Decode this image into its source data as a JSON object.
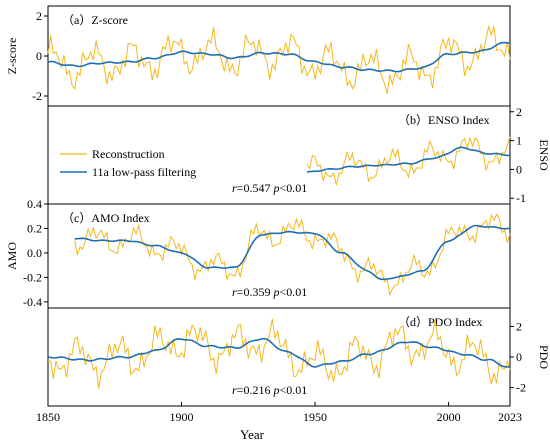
{
  "chart_data": {
    "type": "line",
    "xlabel": "Year",
    "x_ticks": [
      1850,
      1900,
      1950,
      2000,
      2023
    ],
    "xlim": [
      1850,
      2023
    ],
    "legend": {
      "placement": "inside panel b, left",
      "entries": [
        {
          "label": "Reconstruction",
          "color": "#f5b71c"
        },
        {
          "label": "11a low-pass filtering",
          "color": "#1f6fb5"
        }
      ]
    },
    "panels": [
      {
        "id": "a",
        "title": "（a）Z-score",
        "ylabel": "Z-score",
        "y_axis_side": "left",
        "ylim": [
          -2.5,
          2.5
        ],
        "y_ticks": [
          -2,
          0,
          2
        ],
        "y_tick_labels": [
          "-2",
          "0",
          "2"
        ],
        "stat_r": "",
        "stat_p": "",
        "x_start": 1850,
        "anchors_x": [
          1850,
          1860,
          1870,
          1880,
          1890,
          1900,
          1910,
          1920,
          1930,
          1940,
          1950,
          1960,
          1970,
          1980,
          1990,
          2000,
          2010,
          2023
        ],
        "filtered": [
          -0.3,
          -0.5,
          -0.35,
          -0.3,
          -0.1,
          0.2,
          0.1,
          -0.1,
          0.15,
          0.1,
          -0.3,
          -0.55,
          -0.7,
          -0.75,
          -0.6,
          0.1,
          0.2,
          0.7
        ],
        "amplitude": 0.8
      },
      {
        "id": "b",
        "title": "（b）ENSO Index",
        "ylabel": "ENSO",
        "y_axis_side": "right",
        "ylim": [
          -1.2,
          2.2
        ],
        "y_ticks": [
          -1,
          0,
          1,
          2
        ],
        "y_tick_labels": [
          "-1",
          "0",
          "1",
          "2"
        ],
        "stat_r": "r=0.547",
        "stat_p": "p<0.01",
        "x_start": 1947,
        "anchors_x": [
          1947,
          1955,
          1965,
          1975,
          1985,
          1995,
          2005,
          2015,
          2023
        ],
        "filtered": [
          -0.1,
          0.0,
          0.1,
          0.15,
          0.2,
          0.4,
          0.75,
          0.55,
          0.5
        ],
        "amplitude": 0.4
      },
      {
        "id": "c",
        "title": "（c）AMO Index",
        "ylabel": "AMO",
        "y_axis_side": "left",
        "ylim": [
          -0.45,
          0.4
        ],
        "y_ticks": [
          -0.4,
          -0.2,
          0.0,
          0.2,
          0.4
        ],
        "y_tick_labels": [
          "-0.4",
          "-0.2",
          "0.0",
          "0.2",
          "0.4"
        ],
        "stat_r": "r=0.359",
        "stat_p": "p<0.01",
        "x_start": 1860,
        "anchors_x": [
          1860,
          1870,
          1880,
          1890,
          1900,
          1910,
          1920,
          1930,
          1940,
          1950,
          1960,
          1970,
          1975,
          1980,
          1990,
          2000,
          2010,
          2023
        ],
        "filtered": [
          0.12,
          0.1,
          0.1,
          0.06,
          0.0,
          -0.12,
          -0.12,
          0.15,
          0.17,
          0.16,
          0.0,
          -0.15,
          -0.22,
          -0.2,
          -0.15,
          0.1,
          0.22,
          0.2
        ],
        "amplitude": 0.09
      },
      {
        "id": "d",
        "title": "（d）PDO Index",
        "ylabel": "PDO",
        "y_axis_side": "right",
        "ylim": [
          -3.2,
          3.2
        ],
        "y_ticks": [
          -2,
          0,
          2
        ],
        "y_tick_labels": [
          "-2",
          "0",
          "2"
        ],
        "stat_r": "r=0.216",
        "stat_p": "p<0.01",
        "x_start": 1850,
        "anchors_x": [
          1850,
          1865,
          1880,
          1890,
          1900,
          1910,
          1920,
          1930,
          1940,
          1950,
          1960,
          1970,
          1985,
          1995,
          2005,
          2015,
          2023
        ],
        "filtered": [
          0.0,
          -0.2,
          0.0,
          0.4,
          1.2,
          0.7,
          0.6,
          1.2,
          0.3,
          -0.6,
          -0.3,
          0.2,
          1.0,
          0.6,
          0.2,
          -0.2,
          -0.7
        ],
        "amplitude": 1.1
      }
    ]
  },
  "colors": {
    "reconstruction": "#f5b71c",
    "filtered": "#1f6fb5",
    "axis": "#000000"
  }
}
